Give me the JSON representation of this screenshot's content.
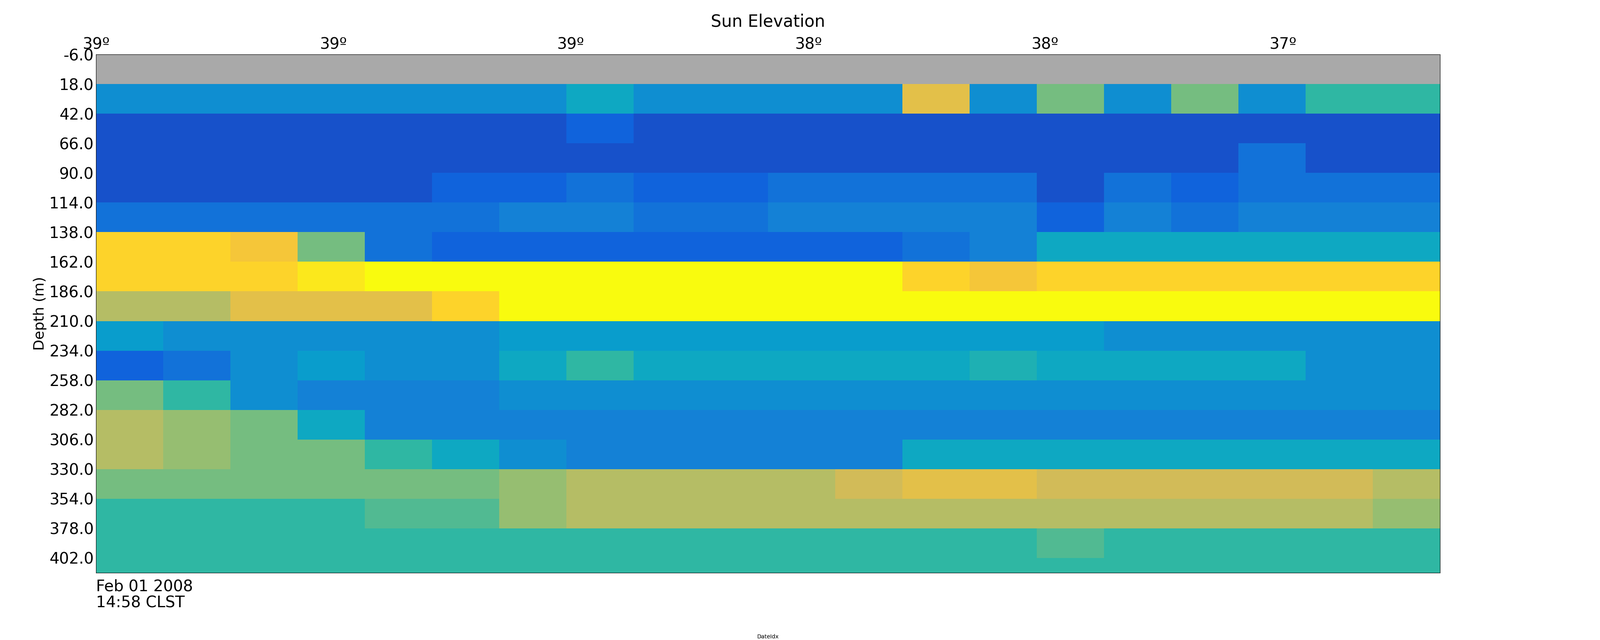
{
  "chart_data": {
    "type": "heatmap",
    "title": "Sun Elevation",
    "y_label": "Depth (m)",
    "x_label": "DateIdx",
    "date_label": "Feb 01 2008\n14:58 CLST",
    "x_edges": [
      0,
      1,
      2,
      3,
      4,
      5,
      6,
      7,
      8,
      9,
      10,
      11,
      12,
      13,
      14,
      15,
      16,
      17,
      18,
      19,
      20
    ],
    "depth_edges": [
      -6,
      18,
      42,
      66,
      90,
      114,
      138,
      162,
      186,
      210,
      234,
      258,
      282,
      306,
      330,
      354,
      378,
      402,
      414
    ],
    "xlim": [
      0,
      20
    ],
    "ylim": [
      414,
      -6
    ],
    "zlim": [
      0,
      10
    ],
    "xticks": [
      {
        "value": 0,
        "label": "39º"
      },
      {
        "value": 3.53,
        "label": "39º"
      },
      {
        "value": 7.06,
        "label": "39º"
      },
      {
        "value": 10.6,
        "label": "38º"
      },
      {
        "value": 14.12,
        "label": "38º"
      },
      {
        "value": 17.66,
        "label": "37º"
      }
    ],
    "yticks": [
      {
        "value": -6,
        "label": "-6.0"
      },
      {
        "value": 18,
        "label": "18.0"
      },
      {
        "value": 42,
        "label": "42.0"
      },
      {
        "value": 66,
        "label": "66.0"
      },
      {
        "value": 90,
        "label": "90.0"
      },
      {
        "value": 114,
        "label": "114.0"
      },
      {
        "value": 138,
        "label": "138.0"
      },
      {
        "value": 162,
        "label": "162.0"
      },
      {
        "value": 186,
        "label": "186.0"
      },
      {
        "value": 210,
        "label": "210.0"
      },
      {
        "value": 234,
        "label": "234.0"
      },
      {
        "value": 258,
        "label": "258.0"
      },
      {
        "value": 282,
        "label": "282.0"
      },
      {
        "value": 306,
        "label": "306.0"
      },
      {
        "value": 330,
        "label": "330.0"
      },
      {
        "value": 354,
        "label": "354.0"
      },
      {
        "value": 378,
        "label": "378.0"
      },
      {
        "value": 402,
        "label": "402.0"
      }
    ],
    "cells": [
      [
        null,
        null,
        null,
        null,
        null,
        null,
        null,
        null,
        null,
        null,
        null,
        null,
        null,
        null,
        null,
        null,
        null,
        null,
        null,
        null
      ],
      [
        3,
        3,
        3,
        3,
        3,
        3,
        3,
        4,
        3,
        3,
        3,
        3,
        8,
        3,
        6,
        3,
        6,
        3,
        5,
        5
      ],
      [
        1,
        1,
        1,
        1,
        1,
        1,
        1,
        1.5,
        1,
        1,
        1,
        1,
        1,
        1,
        1,
        1,
        1,
        1,
        1,
        1
      ],
      [
        1,
        1,
        1,
        1,
        1,
        1,
        1,
        1,
        1,
        1,
        1,
        1,
        1,
        1,
        1,
        1,
        1,
        2,
        1,
        1
      ],
      [
        1,
        1,
        1,
        1,
        1,
        1.5,
        1.5,
        2,
        1.5,
        1.5,
        2,
        2,
        2,
        2,
        1,
        2,
        1.5,
        2,
        2,
        2
      ],
      [
        2,
        2,
        2,
        2,
        2,
        2,
        2.5,
        2.5,
        2,
        2,
        2.5,
        2.5,
        2.5,
        2.5,
        1.5,
        2.5,
        2,
        2.5,
        2.5,
        2.5
      ],
      [
        9,
        9,
        8.5,
        6,
        2,
        1.5,
        1.5,
        1.5,
        1.5,
        1.5,
        1.5,
        1.5,
        2,
        2.5,
        4,
        4,
        4,
        4,
        4,
        4
      ],
      [
        9,
        9,
        9,
        9.5,
        10,
        10,
        10,
        10,
        10,
        10,
        10,
        10,
        9,
        8.5,
        9,
        9,
        9,
        9,
        9,
        9
      ],
      [
        7,
        7,
        8,
        8,
        8,
        9,
        10,
        10,
        10,
        10,
        10,
        10,
        10,
        10,
        10,
        10,
        10,
        10,
        10,
        10
      ],
      [
        3.5,
        3,
        3,
        3,
        3,
        3,
        3.5,
        3.5,
        3.5,
        3.5,
        3.5,
        3.5,
        3.5,
        3.5,
        3.5,
        3,
        3,
        3,
        3,
        3
      ],
      [
        1.5,
        2,
        3,
        3.5,
        3,
        3,
        4,
        5,
        4,
        4,
        4,
        4,
        4,
        4.5,
        4,
        4,
        4,
        4,
        3,
        3
      ],
      [
        6,
        5,
        3,
        2.5,
        2.5,
        2.5,
        3,
        3,
        3,
        3,
        3,
        3,
        3,
        3,
        3,
        3,
        3,
        3,
        3,
        3
      ],
      [
        7,
        6.5,
        6,
        4,
        2.5,
        2.5,
        2.5,
        2.5,
        2.5,
        2.5,
        2.5,
        2.5,
        2.5,
        2.5,
        2.5,
        2.5,
        2.5,
        2.5,
        2.5,
        2.5
      ],
      [
        7,
        6.5,
        6,
        6,
        5,
        4,
        3,
        2.5,
        2.5,
        2.5,
        2.5,
        2.5,
        4,
        4,
        4,
        4,
        4,
        4,
        4,
        4
      ],
      [
        6,
        6,
        6,
        6,
        6,
        6,
        6.5,
        7,
        7,
        7,
        7,
        7.5,
        8,
        8,
        7.5,
        7.5,
        7.5,
        7.5,
        7.5,
        7
      ],
      [
        5,
        5,
        5,
        5,
        5.5,
        5.5,
        6.5,
        7,
        7,
        7,
        7,
        7,
        7,
        7,
        7,
        7,
        7,
        7,
        7,
        6.5
      ],
      [
        5,
        5,
        5,
        5,
        5,
        5,
        5,
        5,
        5,
        5,
        5,
        5,
        5,
        5,
        5.5,
        5,
        5,
        5,
        5,
        5
      ],
      [
        5,
        5,
        5,
        5,
        5,
        5,
        5,
        5,
        5,
        5,
        5,
        5,
        5,
        5,
        5,
        5,
        5,
        5,
        5,
        5
      ]
    ]
  }
}
